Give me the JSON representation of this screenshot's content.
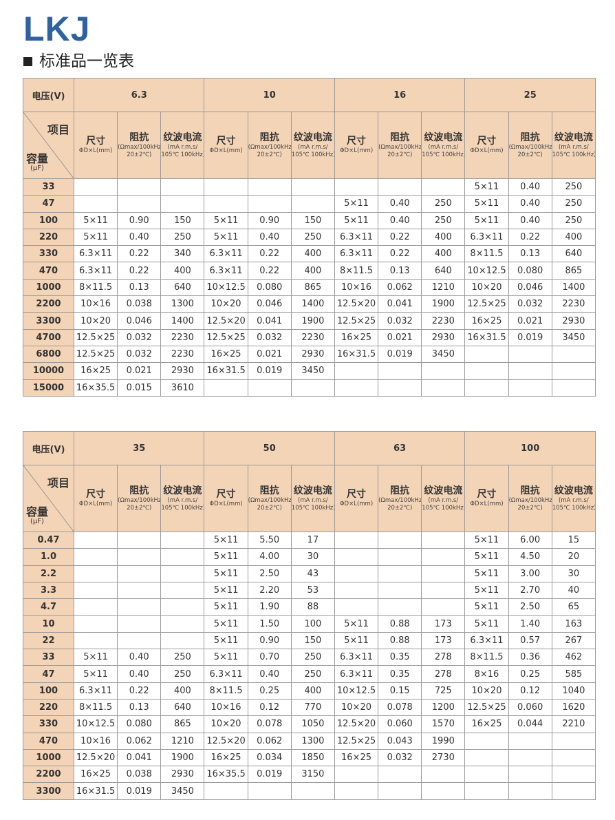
{
  "brand": "LKJ",
  "section_title": "标准品一览表",
  "colors": {
    "brand_blue": "#2e63a0",
    "header_bg": "#f3d4b7"
  },
  "headers": {
    "voltage_label": "电压(V)",
    "corner_item": "项目",
    "corner_capacity": "容量",
    "corner_unit": "(μF)",
    "size": {
      "title": "尺寸",
      "sub": [
        "ΦD×L(mm)"
      ]
    },
    "impedance": {
      "title": "阻抗",
      "sub": [
        "(Ωmax/100kHz",
        "20±2℃)"
      ]
    },
    "ripple": {
      "title": "纹波电流",
      "sub": [
        "(mA r.m.s/",
        "105℃ 100kHz)"
      ]
    }
  },
  "tables": [
    {
      "voltages": [
        "6.3",
        "10",
        "16",
        "25"
      ],
      "rows": [
        {
          "cap": "33",
          "cells": [
            "",
            "",
            "",
            "",
            "",
            "",
            "",
            "",
            "",
            "5×11",
            "0.40",
            "250"
          ]
        },
        {
          "cap": "47",
          "cells": [
            "",
            "",
            "",
            "",
            "",
            "",
            "5×11",
            "0.40",
            "250",
            "5×11",
            "0.40",
            "250"
          ]
        },
        {
          "cap": "100",
          "cells": [
            "5×11",
            "0.90",
            "150",
            "5×11",
            "0.90",
            "150",
            "5×11",
            "0.40",
            "250",
            "5×11",
            "0.40",
            "250"
          ]
        },
        {
          "cap": "220",
          "cells": [
            "5×11",
            "0.40",
            "250",
            "5×11",
            "0.40",
            "250",
            "6.3×11",
            "0.22",
            "400",
            "6.3×11",
            "0.22",
            "400"
          ]
        },
        {
          "cap": "330",
          "cells": [
            "6.3×11",
            "0.22",
            "340",
            "6.3×11",
            "0.22",
            "400",
            "6.3×11",
            "0.22",
            "400",
            "8×11.5",
            "0.13",
            "640"
          ]
        },
        {
          "cap": "470",
          "cells": [
            "6.3×11",
            "0.22",
            "400",
            "6.3×11",
            "0.22",
            "400",
            "8×11.5",
            "0.13",
            "640",
            "10×12.5",
            "0.080",
            "865"
          ]
        },
        {
          "cap": "1000",
          "cells": [
            "8×11.5",
            "0.13",
            "640",
            "10×12.5",
            "0.080",
            "865",
            "10×16",
            "0.062",
            "1210",
            "10×20",
            "0.046",
            "1400"
          ]
        },
        {
          "cap": "2200",
          "cells": [
            "10×16",
            "0.038",
            "1300",
            "10×20",
            "0.046",
            "1400",
            "12.5×20",
            "0.041",
            "1900",
            "12.5×25",
            "0.032",
            "2230"
          ]
        },
        {
          "cap": "3300",
          "cells": [
            "10×20",
            "0.046",
            "1400",
            "12.5×20",
            "0.041",
            "1900",
            "12.5×25",
            "0.032",
            "2230",
            "16×25",
            "0.021",
            "2930"
          ]
        },
        {
          "cap": "4700",
          "cells": [
            "12.5×25",
            "0.032",
            "2230",
            "12.5×25",
            "0.032",
            "2230",
            "16×25",
            "0.021",
            "2930",
            "16×31.5",
            "0.019",
            "3450"
          ]
        },
        {
          "cap": "6800",
          "cells": [
            "12.5×25",
            "0.032",
            "2230",
            "16×25",
            "0.021",
            "2930",
            "16×31.5",
            "0.019",
            "3450",
            "",
            "",
            ""
          ]
        },
        {
          "cap": "10000",
          "cells": [
            "16×25",
            "0.021",
            "2930",
            "16×31.5",
            "0.019",
            "3450",
            "",
            "",
            "",
            "",
            "",
            ""
          ]
        },
        {
          "cap": "15000",
          "cells": [
            "16×35.5",
            "0.015",
            "3610",
            "",
            "",
            "",
            "",
            "",
            "",
            "",
            "",
            ""
          ]
        }
      ]
    },
    {
      "voltages": [
        "35",
        "50",
        "63",
        "100"
      ],
      "rows": [
        {
          "cap": "0.47",
          "cells": [
            "",
            "",
            "",
            "5×11",
            "5.50",
            "17",
            "",
            "",
            "",
            "5×11",
            "6.00",
            "15"
          ]
        },
        {
          "cap": "1.0",
          "cells": [
            "",
            "",
            "",
            "5×11",
            "4.00",
            "30",
            "",
            "",
            "",
            "5×11",
            "4.50",
            "20"
          ]
        },
        {
          "cap": "2.2",
          "cells": [
            "",
            "",
            "",
            "5×11",
            "2.50",
            "43",
            "",
            "",
            "",
            "5×11",
            "3.00",
            "30"
          ]
        },
        {
          "cap": "3.3",
          "cells": [
            "",
            "",
            "",
            "5×11",
            "2.20",
            "53",
            "",
            "",
            "",
            "5×11",
            "2.70",
            "40"
          ]
        },
        {
          "cap": "4.7",
          "cells": [
            "",
            "",
            "",
            "5×11",
            "1.90",
            "88",
            "",
            "",
            "",
            "5×11",
            "2.50",
            "65"
          ]
        },
        {
          "cap": "10",
          "cells": [
            "",
            "",
            "",
            "5×11",
            "1.50",
            "100",
            "5×11",
            "0.88",
            "173",
            "5×11",
            "1.40",
            "163"
          ]
        },
        {
          "cap": "22",
          "cells": [
            "",
            "",
            "",
            "5×11",
            "0.90",
            "150",
            "5×11",
            "0.88",
            "173",
            "6.3×11",
            "0.57",
            "267"
          ]
        },
        {
          "cap": "33",
          "cells": [
            "5×11",
            "0.40",
            "250",
            "5×11",
            "0.70",
            "250",
            "6.3×11",
            "0.35",
            "278",
            "8×11.5",
            "0.36",
            "462"
          ]
        },
        {
          "cap": "47",
          "cells": [
            "5×11",
            "0.40",
            "250",
            "6.3×11",
            "0.40",
            "250",
            "6.3×11",
            "0.35",
            "278",
            "8×16",
            "0.25",
            "585"
          ]
        },
        {
          "cap": "100",
          "cells": [
            "6.3×11",
            "0.22",
            "400",
            "8×11.5",
            "0.25",
            "400",
            "10×12.5",
            "0.15",
            "725",
            "10×20",
            "0.12",
            "1040"
          ]
        },
        {
          "cap": "220",
          "cells": [
            "8×11.5",
            "0.13",
            "640",
            "10×16",
            "0.12",
            "770",
            "10×20",
            "0.078",
            "1200",
            "12.5×25",
            "0.060",
            "1620"
          ]
        },
        {
          "cap": "330",
          "cells": [
            "10×12.5",
            "0.080",
            "865",
            "10×20",
            "0.078",
            "1050",
            "12.5×20",
            "0.060",
            "1570",
            "16×25",
            "0.044",
            "2210"
          ]
        },
        {
          "cap": "470",
          "cells": [
            "10×16",
            "0.062",
            "1210",
            "12.5×20",
            "0.062",
            "1300",
            "12.5×25",
            "0.043",
            "1990",
            "",
            "",
            ""
          ]
        },
        {
          "cap": "1000",
          "cells": [
            "12.5×20",
            "0.041",
            "1900",
            "16×25",
            "0.034",
            "1850",
            "16×25",
            "0.032",
            "2730",
            "",
            "",
            ""
          ]
        },
        {
          "cap": "2200",
          "cells": [
            "16×25",
            "0.038",
            "2930",
            "16×35.5",
            "0.019",
            "3150",
            "",
            "",
            "",
            "",
            "",
            ""
          ]
        },
        {
          "cap": "3300",
          "cells": [
            "16×31.5",
            "0.019",
            "3450",
            "",
            "",
            "",
            "",
            "",
            "",
            "",
            "",
            ""
          ]
        }
      ]
    }
  ]
}
